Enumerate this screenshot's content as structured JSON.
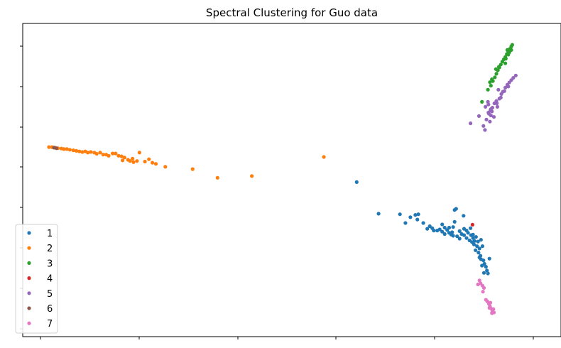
{
  "chart_data": {
    "type": "scatter",
    "title": "Spectral Clustering for Guo data",
    "xlabel": "",
    "ylabel": "",
    "xlim": [
      0,
      100
    ],
    "ylim": [
      0,
      100
    ],
    "grid": false,
    "legend": "lower-left",
    "x_ticks_labeled": false,
    "y_ticks_labeled": false,
    "series": [
      {
        "name": "1",
        "color": "#1f77b4",
        "points": [
          [
            64.9,
            49.4
          ],
          [
            69.3,
            38.5
          ],
          [
            73.6,
            38.3
          ],
          [
            74.7,
            35.3
          ],
          [
            75.7,
            37.3
          ],
          [
            76.7,
            38.1
          ],
          [
            77.3,
            38.3
          ],
          [
            77.1,
            36.5
          ],
          [
            78.3,
            35.3
          ],
          [
            79.1,
            33.3
          ],
          [
            79.6,
            34.2
          ],
          [
            80.1,
            33.5
          ],
          [
            80.4,
            32.7
          ],
          [
            81.1,
            32.7
          ],
          [
            81.6,
            33.1
          ],
          [
            82.1,
            34.8
          ],
          [
            82.1,
            32.3
          ],
          [
            82.6,
            31.5
          ],
          [
            82.6,
            33.7
          ],
          [
            83.1,
            32.9
          ],
          [
            83.5,
            31.9
          ],
          [
            83.5,
            33.7
          ],
          [
            83.9,
            31.3
          ],
          [
            84.3,
            33.9
          ],
          [
            84.3,
            30.9
          ],
          [
            84.6,
            39.8
          ],
          [
            84.9,
            40.2
          ],
          [
            84.6,
            35.7
          ],
          [
            84.1,
            32.1
          ],
          [
            85.1,
            30.7
          ],
          [
            85.6,
            32.5
          ],
          [
            85.6,
            29.9
          ],
          [
            86.0,
            31.5
          ],
          [
            86.4,
            37.8
          ],
          [
            86.5,
            33.3
          ],
          [
            86.5,
            31.1
          ],
          [
            87.0,
            32.7
          ],
          [
            87.0,
            30.1
          ],
          [
            87.3,
            31.9
          ],
          [
            87.6,
            29.3
          ],
          [
            87.9,
            31.1
          ],
          [
            88.1,
            28.7
          ],
          [
            87.8,
            33.5
          ],
          [
            88.3,
            30.1
          ],
          [
            88.5,
            27.9
          ],
          [
            88.3,
            31.3
          ],
          [
            88.6,
            29.1
          ],
          [
            88.9,
            30.5
          ],
          [
            89.1,
            27.3
          ],
          [
            89.3,
            28.9
          ],
          [
            89.6,
            26.5
          ],
          [
            89.9,
            29.5
          ],
          [
            88.8,
            25.9
          ],
          [
            89.4,
            25.1
          ],
          [
            89.8,
            24.0
          ],
          [
            90.2,
            27.3
          ],
          [
            89.9,
            22.8
          ],
          [
            90.4,
            22.4
          ],
          [
            90.6,
            21.2
          ],
          [
            90.9,
            20.2
          ],
          [
            91.1,
            18.9
          ],
          [
            91.3,
            17.9
          ],
          [
            90.5,
            18.1
          ],
          [
            90.1,
            20.6
          ],
          [
            91.6,
            23.0
          ],
          [
            89.6,
            23.4
          ]
        ]
      },
      {
        "name": "2",
        "color": "#ff7f0e",
        "points": [
          [
            3.0,
            61.5
          ],
          [
            3.6,
            61.5
          ],
          [
            4.2,
            61.3
          ],
          [
            4.8,
            61.1
          ],
          [
            5.5,
            61.0
          ],
          [
            6.0,
            60.8
          ],
          [
            6.6,
            60.8
          ],
          [
            7.2,
            60.6
          ],
          [
            7.9,
            60.4
          ],
          [
            8.5,
            60.2
          ],
          [
            9.1,
            60.0
          ],
          [
            9.7,
            59.8
          ],
          [
            10.3,
            60.0
          ],
          [
            10.8,
            59.6
          ],
          [
            11.4,
            59.8
          ],
          [
            12.1,
            59.6
          ],
          [
            12.6,
            59.2
          ],
          [
            13.3,
            59.6
          ],
          [
            13.9,
            58.9
          ],
          [
            14.5,
            58.9
          ],
          [
            15.0,
            58.5
          ],
          [
            15.8,
            59.3
          ],
          [
            16.4,
            59.3
          ],
          [
            17.0,
            58.5
          ],
          [
            17.6,
            58.3
          ],
          [
            18.2,
            57.9
          ],
          [
            17.8,
            56.9
          ],
          [
            18.9,
            57.1
          ],
          [
            19.3,
            56.7
          ],
          [
            19.8,
            57.5
          ],
          [
            20.0,
            56.3
          ],
          [
            20.7,
            56.7
          ],
          [
            21.2,
            59.6
          ],
          [
            22.3,
            56.5
          ],
          [
            23.1,
            57.3
          ],
          [
            23.8,
            56.1
          ],
          [
            24.5,
            55.7
          ],
          [
            26.4,
            54.7
          ],
          [
            31.9,
            53.9
          ],
          [
            36.9,
            50.9
          ],
          [
            43.8,
            51.5
          ],
          [
            58.3,
            58.1
          ]
        ]
      },
      {
        "name": "3",
        "color": "#2ca02c",
        "points": [
          [
            91.3,
            81.3
          ],
          [
            91.9,
            82.7
          ],
          [
            92.3,
            84.3
          ],
          [
            92.7,
            85.6
          ],
          [
            93.0,
            86.8
          ],
          [
            93.3,
            88.0
          ],
          [
            93.6,
            89.0
          ],
          [
            93.9,
            90.0
          ],
          [
            94.2,
            91.0
          ],
          [
            94.5,
            91.8
          ],
          [
            94.8,
            92.6
          ],
          [
            95.1,
            93.6
          ],
          [
            95.4,
            94.4
          ],
          [
            95.7,
            95.4
          ],
          [
            96.0,
            96.2
          ],
          [
            96.2,
            96.8
          ],
          [
            95.4,
            93.4
          ],
          [
            94.8,
            90.4
          ],
          [
            93.5,
            89.2
          ],
          [
            94.9,
            92.0
          ],
          [
            95.6,
            94.2
          ],
          [
            96.0,
            95.0
          ],
          [
            95.2,
            95.0
          ],
          [
            92.9,
            88.4
          ],
          [
            91.7,
            83.9
          ],
          [
            92.1,
            84.9
          ],
          [
            90.1,
            77.1
          ]
        ]
      },
      {
        "name": "4",
        "color": "#d62728",
        "points": [
          [
            88.2,
            34.7
          ]
        ]
      },
      {
        "name": "5",
        "color": "#9467bd",
        "points": [
          [
            87.8,
            69.7
          ],
          [
            89.5,
            72.2
          ],
          [
            90.7,
            67.4
          ],
          [
            91.0,
            71.0
          ],
          [
            91.4,
            73.4
          ],
          [
            91.8,
            74.2
          ],
          [
            92.2,
            75.1
          ],
          [
            92.6,
            76.6
          ],
          [
            93.0,
            77.4
          ],
          [
            93.2,
            75.4
          ],
          [
            93.6,
            78.2
          ],
          [
            94.0,
            79.8
          ],
          [
            94.3,
            80.6
          ],
          [
            94.8,
            82.0
          ],
          [
            95.2,
            83.0
          ],
          [
            95.6,
            83.8
          ],
          [
            96.0,
            84.6
          ],
          [
            96.4,
            85.4
          ],
          [
            96.9,
            86.2
          ],
          [
            93.4,
            81.3
          ],
          [
            92.1,
            73.8
          ],
          [
            91.9,
            72.4
          ],
          [
            92.5,
            71.9
          ],
          [
            91.7,
            70.3
          ],
          [
            93.1,
            76.6
          ],
          [
            93.9,
            78.6
          ],
          [
            94.6,
            80.8
          ],
          [
            95.4,
            82.4
          ],
          [
            90.8,
            75.4
          ],
          [
            91.3,
            77.1
          ],
          [
            90.4,
            68.8
          ],
          [
            91.4,
            76.2
          ],
          [
            91.5,
            73.0
          ],
          [
            91.9,
            74.6
          ]
        ]
      },
      {
        "name": "6",
        "color": "#8c564b",
        "points": [
          [
            4.0,
            61.3
          ],
          [
            4.5,
            61.1
          ]
        ]
      },
      {
        "name": "7",
        "color": "#e377c2",
        "points": [
          [
            89.6,
            15.5
          ],
          [
            89.8,
            14.5
          ],
          [
            90.2,
            13.7
          ],
          [
            90.5,
            12.9
          ],
          [
            89.3,
            14.1
          ],
          [
            90.3,
            11.6
          ],
          [
            90.9,
            8.8
          ],
          [
            91.2,
            8.2
          ],
          [
            91.5,
            7.4
          ],
          [
            91.7,
            6.6
          ],
          [
            91.9,
            5.8
          ],
          [
            92.2,
            5.0
          ],
          [
            92.5,
            4.4
          ],
          [
            91.6,
            6.0
          ],
          [
            92.4,
            5.6
          ],
          [
            92.1,
            4.2
          ],
          [
            91.8,
            7.8
          ]
        ]
      }
    ]
  }
}
